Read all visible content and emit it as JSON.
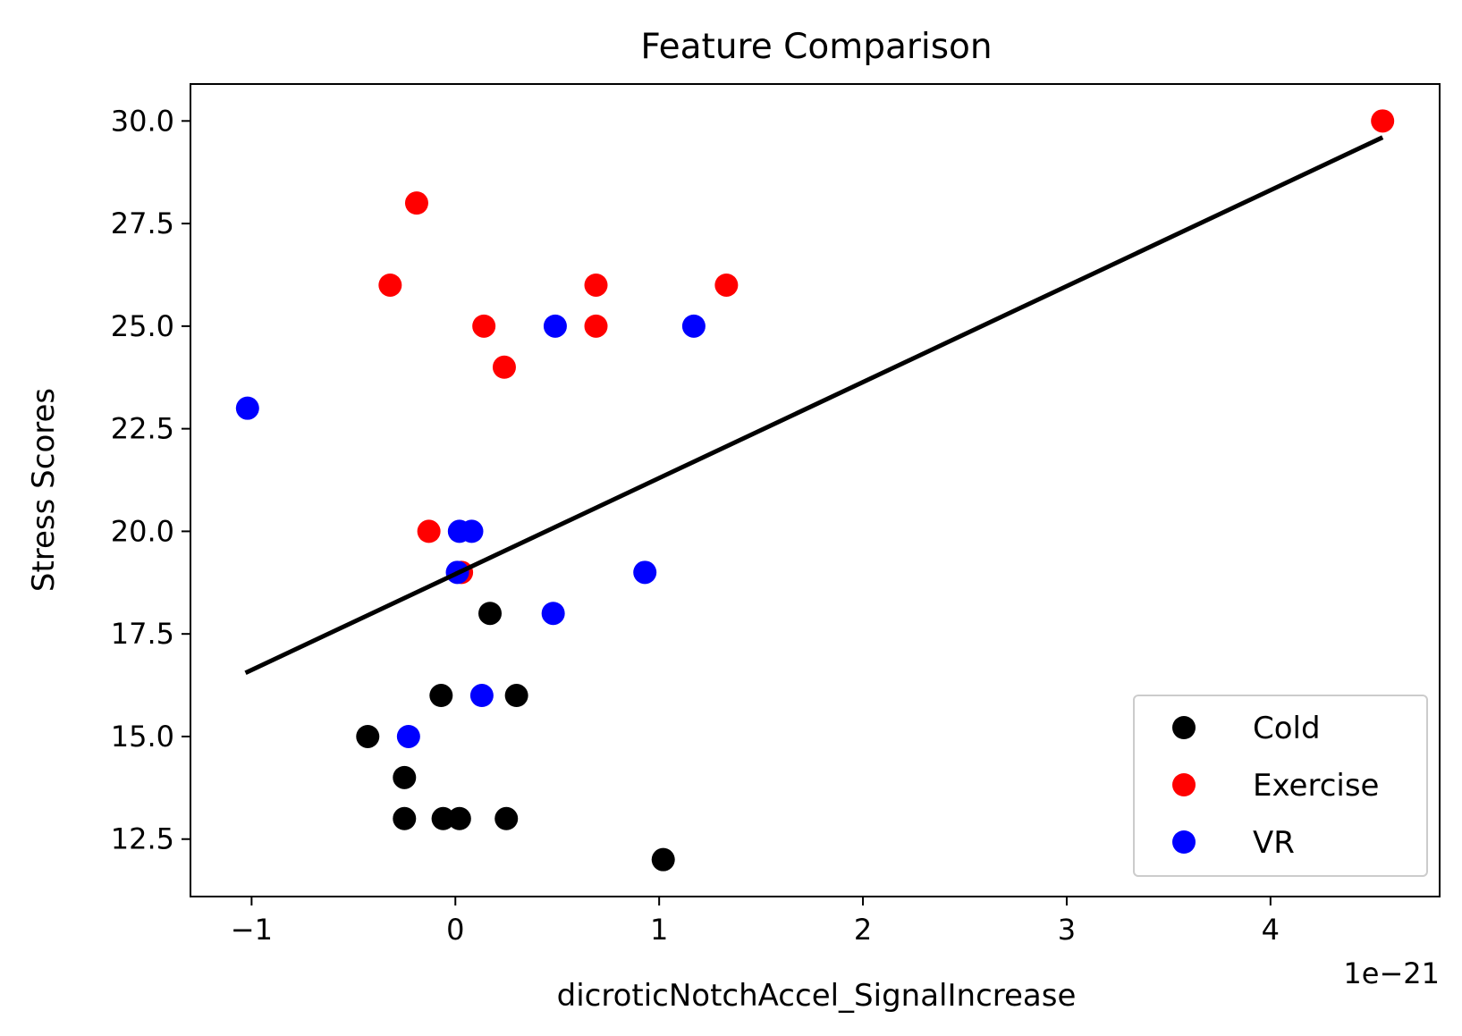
{
  "chart_data": {
    "type": "scatter",
    "title": "Feature Comparison",
    "xlabel": "dicroticNotchAccel_SignalIncrease",
    "ylabel": "Stress Scores",
    "x_offset_text": "1e−21",
    "x_scale_exponent": -21,
    "xlim": [
      -1.3,
      4.83
    ],
    "ylim": [
      11.1,
      30.9
    ],
    "x_ticks": [
      -1,
      0,
      1,
      2,
      3,
      4
    ],
    "x_tick_labels": [
      "−1",
      "0",
      "1",
      "2",
      "3",
      "4"
    ],
    "y_ticks": [
      12.5,
      15.0,
      17.5,
      20.0,
      22.5,
      25.0,
      27.5,
      30.0
    ],
    "y_tick_labels": [
      "12.5",
      "15.0",
      "17.5",
      "20.0",
      "22.5",
      "25.0",
      "27.5",
      "30.0"
    ],
    "grid": false,
    "legend_position": "lower-right",
    "series": [
      {
        "name": "Cold",
        "color": "#000000",
        "points": [
          {
            "x": -0.43,
            "y": 15
          },
          {
            "x": -0.25,
            "y": 14
          },
          {
            "x": -0.25,
            "y": 13
          },
          {
            "x": -0.07,
            "y": 16
          },
          {
            "x": -0.06,
            "y": 13
          },
          {
            "x": 0.02,
            "y": 13
          },
          {
            "x": 0.17,
            "y": 18
          },
          {
            "x": 0.25,
            "y": 13
          },
          {
            "x": 0.3,
            "y": 16
          },
          {
            "x": 1.02,
            "y": 12
          }
        ]
      },
      {
        "name": "Exercise",
        "color": "#ff0000",
        "points": [
          {
            "x": -0.32,
            "y": 26
          },
          {
            "x": -0.19,
            "y": 28
          },
          {
            "x": -0.13,
            "y": 20
          },
          {
            "x": 0.03,
            "y": 19
          },
          {
            "x": 0.14,
            "y": 25
          },
          {
            "x": 0.24,
            "y": 24
          },
          {
            "x": 0.69,
            "y": 26
          },
          {
            "x": 0.69,
            "y": 25
          },
          {
            "x": 1.33,
            "y": 26
          },
          {
            "x": 4.55,
            "y": 30
          }
        ]
      },
      {
        "name": "VR",
        "color": "#0000ff",
        "points": [
          {
            "x": -1.02,
            "y": 23
          },
          {
            "x": -0.23,
            "y": 15
          },
          {
            "x": 0.01,
            "y": 19
          },
          {
            "x": 0.02,
            "y": 20
          },
          {
            "x": 0.08,
            "y": 20
          },
          {
            "x": 0.13,
            "y": 16
          },
          {
            "x": 0.48,
            "y": 18
          },
          {
            "x": 0.49,
            "y": 25
          },
          {
            "x": 0.93,
            "y": 19
          },
          {
            "x": 1.17,
            "y": 25
          }
        ]
      }
    ],
    "fit_line": {
      "color": "#000000",
      "x": [
        -1.03,
        4.55
      ],
      "y": [
        16.55,
        29.6
      ]
    }
  }
}
